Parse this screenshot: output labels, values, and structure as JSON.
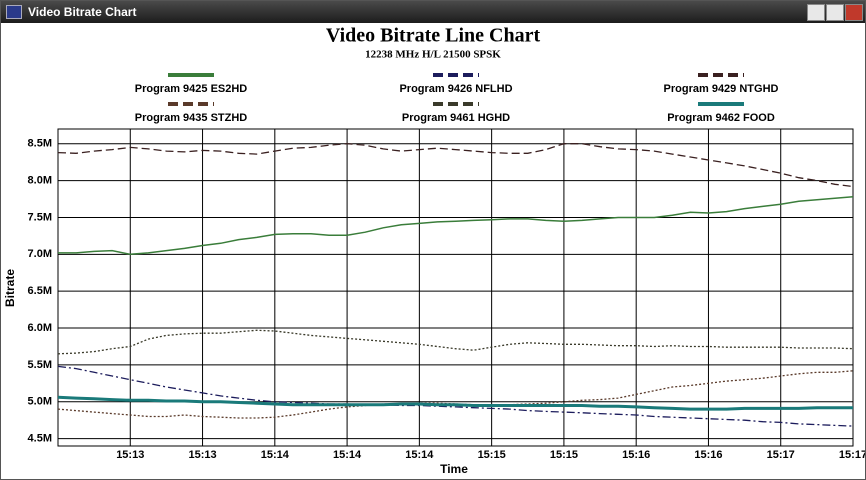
{
  "window": {
    "title": "Video Bitrate Chart"
  },
  "chart_data": {
    "type": "line",
    "title": "Video Bitrate Line Chart",
    "subtitle": "12238 MHz H/L 21500 SPSK",
    "xlabel": "Time",
    "ylabel": "Bitrate",
    "categories": [
      null,
      null,
      null,
      null,
      "15:13",
      null,
      null,
      null,
      "15:13",
      null,
      null,
      null,
      "15:14",
      null,
      null,
      null,
      "15:14",
      null,
      null,
      null,
      "15:14",
      null,
      null,
      null,
      "15:15",
      null,
      null,
      null,
      "15:15",
      null,
      null,
      null,
      "15:16",
      null,
      null,
      null,
      "15:16",
      null,
      null,
      null,
      "15:17",
      null,
      null,
      null,
      "15:17"
    ],
    "ylim": [
      4.4,
      8.7
    ],
    "yticks": [
      {
        "value": 4.5,
        "label": "4.5M"
      },
      {
        "value": 5.0,
        "label": "5.0M"
      },
      {
        "value": 5.5,
        "label": "5.5M"
      },
      {
        "value": 6.0,
        "label": "6.0M"
      },
      {
        "value": 6.5,
        "label": "6.5M"
      },
      {
        "value": 7.0,
        "label": "7.0M"
      },
      {
        "value": 7.5,
        "label": "7.5M"
      },
      {
        "value": 8.0,
        "label": "8.0M"
      },
      {
        "value": 8.5,
        "label": "8.5M"
      }
    ],
    "grid": true,
    "series": [
      {
        "name": "Program 9425 ES2HD",
        "color": "#3a7d3a",
        "style": "solid",
        "values": [
          7.02,
          7.02,
          7.04,
          7.05,
          7.0,
          7.02,
          7.05,
          7.08,
          7.12,
          7.15,
          7.2,
          7.23,
          7.27,
          7.28,
          7.28,
          7.26,
          7.26,
          7.3,
          7.36,
          7.4,
          7.42,
          7.44,
          7.45,
          7.46,
          7.47,
          7.48,
          7.48,
          7.46,
          7.45,
          7.46,
          7.48,
          7.5,
          7.5,
          7.5,
          7.53,
          7.57,
          7.56,
          7.58,
          7.62,
          7.65,
          7.68,
          7.72,
          7.74,
          7.76,
          7.78
        ]
      },
      {
        "name": "Program 9426 NFLHD",
        "color": "#1c1c5c",
        "style": "dashdot",
        "values": [
          5.48,
          5.45,
          5.4,
          5.35,
          5.3,
          5.25,
          5.2,
          5.16,
          5.12,
          5.08,
          5.05,
          5.02,
          5.0,
          4.99,
          4.98,
          4.97,
          4.97,
          4.96,
          4.96,
          4.95,
          4.95,
          4.94,
          4.93,
          4.92,
          4.91,
          4.9,
          4.88,
          4.87,
          4.86,
          4.85,
          4.84,
          4.83,
          4.82,
          4.8,
          4.79,
          4.78,
          4.77,
          4.76,
          4.75,
          4.73,
          4.72,
          4.7,
          4.69,
          4.68,
          4.67
        ]
      },
      {
        "name": "Program 9429 NTGHD",
        "color": "#3a2020",
        "style": "dashed",
        "values": [
          8.38,
          8.37,
          8.4,
          8.42,
          8.45,
          8.43,
          8.4,
          8.39,
          8.41,
          8.4,
          8.37,
          8.36,
          8.4,
          8.44,
          8.45,
          8.48,
          8.5,
          8.48,
          8.43,
          8.4,
          8.42,
          8.44,
          8.42,
          8.4,
          8.38,
          8.37,
          8.37,
          8.42,
          8.5,
          8.5,
          8.46,
          8.43,
          8.42,
          8.4,
          8.36,
          8.32,
          8.28,
          8.24,
          8.2,
          8.15,
          8.1,
          8.04,
          8.0,
          7.95,
          7.92
        ]
      },
      {
        "name": "Program 9435 STZHD",
        "color": "#5a3a2a",
        "style": "dotted",
        "values": [
          4.9,
          4.88,
          4.86,
          4.84,
          4.82,
          4.8,
          4.8,
          4.82,
          4.8,
          4.79,
          4.78,
          4.78,
          4.79,
          4.82,
          4.86,
          4.9,
          4.93,
          4.95,
          4.97,
          4.97,
          4.98,
          4.98,
          4.97,
          4.96,
          4.95,
          4.96,
          4.97,
          4.98,
          5.0,
          5.02,
          5.03,
          5.05,
          5.1,
          5.15,
          5.2,
          5.22,
          5.25,
          5.28,
          5.3,
          5.32,
          5.35,
          5.38,
          5.4,
          5.4,
          5.42
        ]
      },
      {
        "name": "Program 9461 HGHD",
        "color": "#3a3a2a",
        "style": "dotted",
        "values": [
          5.65,
          5.66,
          5.68,
          5.72,
          5.75,
          5.85,
          5.9,
          5.92,
          5.93,
          5.93,
          5.95,
          5.97,
          5.96,
          5.93,
          5.9,
          5.88,
          5.86,
          5.84,
          5.82,
          5.8,
          5.78,
          5.75,
          5.72,
          5.7,
          5.74,
          5.78,
          5.8,
          5.79,
          5.78,
          5.78,
          5.77,
          5.76,
          5.76,
          5.75,
          5.76,
          5.75,
          5.75,
          5.74,
          5.74,
          5.74,
          5.74,
          5.73,
          5.73,
          5.73,
          5.72
        ]
      },
      {
        "name": "Program 9462 FOOD",
        "color": "#1a7a7a",
        "style": "thick",
        "values": [
          5.06,
          5.05,
          5.04,
          5.03,
          5.02,
          5.02,
          5.01,
          5.01,
          5.0,
          5.0,
          4.99,
          4.98,
          4.97,
          4.96,
          4.96,
          4.96,
          4.96,
          4.96,
          4.96,
          4.97,
          4.97,
          4.96,
          4.96,
          4.95,
          4.95,
          4.95,
          4.95,
          4.95,
          4.95,
          4.95,
          4.94,
          4.94,
          4.93,
          4.92,
          4.91,
          4.9,
          4.9,
          4.9,
          4.91,
          4.91,
          4.91,
          4.91,
          4.92,
          4.92,
          4.92
        ]
      }
    ]
  }
}
